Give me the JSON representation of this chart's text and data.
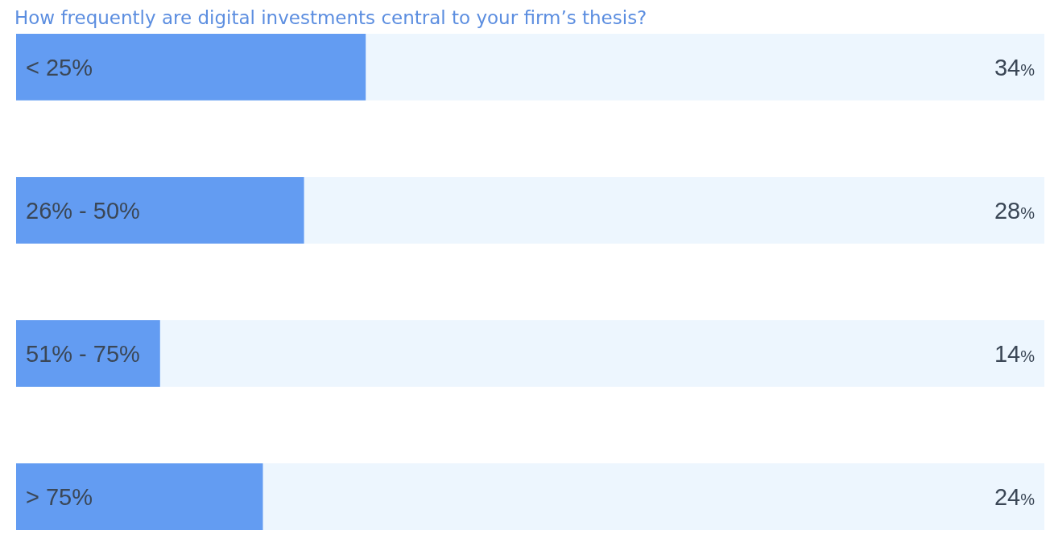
{
  "chart_data": {
    "type": "bar",
    "orientation": "horizontal",
    "title": "How frequently are digital investments central to your firm’s thesis?",
    "categories": [
      "< 25%",
      "26% - 50%",
      "51% - 75%",
      "> 75%"
    ],
    "values": [
      34,
      28,
      14,
      24
    ],
    "value_labels": [
      "34%",
      "28%",
      "14%",
      "24%"
    ],
    "color": "#639cf2",
    "xlim": [
      0,
      100
    ]
  }
}
